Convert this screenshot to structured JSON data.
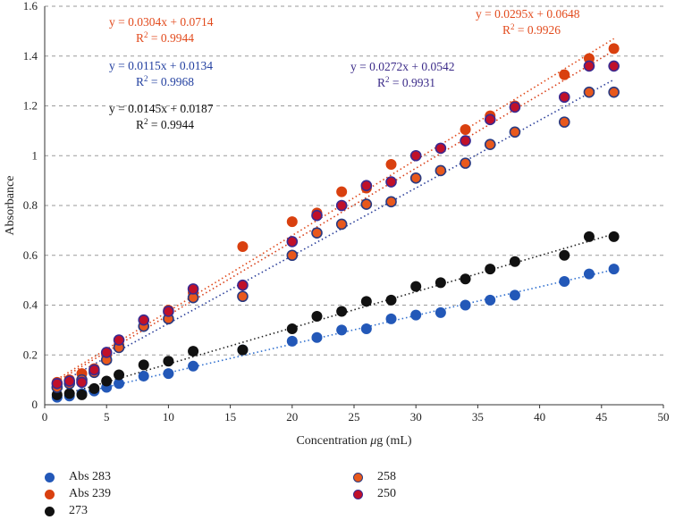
{
  "chart_data": {
    "type": "scatter",
    "xlabel_prefix": "Concentration ",
    "xlabel_mu": "μ",
    "xlabel_suffix": "g (mL)",
    "ylabel": "Absorbance",
    "xlim": [
      0,
      50
    ],
    "ylim": [
      0,
      1.6
    ],
    "xticks": [
      "0",
      "5",
      "10",
      "15",
      "20",
      "25",
      "30",
      "35",
      "40",
      "45",
      "50"
    ],
    "yticks": [
      "0",
      "0.2",
      "0.4",
      "0.6",
      "0.8",
      "1",
      "1.2",
      "1.4",
      "1.6"
    ],
    "grid": "horizontal dashed",
    "series": [
      {
        "name": "Abs 283",
        "fill": "#2358b8",
        "stroke": "#2358b8",
        "trend_color": "#2f6fcf",
        "x": [
          1,
          2,
          3,
          4,
          5,
          6,
          8,
          10,
          12,
          16,
          20,
          22,
          24,
          26,
          28,
          30,
          32,
          34,
          36,
          38,
          42,
          44,
          46
        ],
        "y": [
          0.03,
          0.035,
          0.045,
          0.055,
          0.07,
          0.085,
          0.115,
          0.125,
          0.155,
          0.22,
          0.255,
          0.27,
          0.3,
          0.305,
          0.345,
          0.36,
          0.37,
          0.4,
          0.42,
          0.44,
          0.495,
          0.525,
          0.545
        ],
        "equation": "y = 0.0115x + 0.0134",
        "r2_label": "R",
        "r2_sup": "2",
        "r2_value": " = 0.9968",
        "slope": 0.0115,
        "intercept": 0.0134
      },
      {
        "name": "Abs 239",
        "fill": "#d9400f",
        "stroke": "#d9400f",
        "trend_color": "#e04a1a",
        "x": [
          1,
          2,
          3,
          4,
          5,
          6,
          8,
          10,
          12,
          16,
          20,
          22,
          24,
          26,
          28,
          30,
          32,
          34,
          36,
          38,
          42,
          44,
          46
        ],
        "y": [
          0.09,
          0.1,
          0.125,
          0.145,
          0.2,
          0.24,
          0.34,
          0.38,
          0.45,
          0.635,
          0.735,
          0.77,
          0.855,
          0.87,
          0.965,
          1.0,
          1.03,
          1.105,
          1.16,
          1.2,
          1.325,
          1.39,
          1.43
        ],
        "equation": "y = 0.0304x + 0.0714",
        "r2_label": "R",
        "r2_sup": "2",
        "r2_value": " = 0.9944",
        "slope": 0.0304,
        "intercept": 0.0714
      },
      {
        "name": "273",
        "fill": "#111111",
        "stroke": "#111111",
        "trend_color": "#222222",
        "x": [
          1,
          2,
          3,
          4,
          5,
          6,
          8,
          10,
          12,
          16,
          20,
          22,
          24,
          26,
          28,
          30,
          32,
          34,
          36,
          38,
          42,
          44,
          46
        ],
        "y": [
          0.04,
          0.045,
          0.04,
          0.065,
          0.095,
          0.12,
          0.16,
          0.175,
          0.215,
          0.22,
          0.305,
          0.355,
          0.375,
          0.415,
          0.42,
          0.475,
          0.49,
          0.505,
          0.545,
          0.575,
          0.6,
          0.675,
          0.675
        ],
        "equation": "y = 0.0145x + 0.0187",
        "r2_label": "R",
        "r2_sup": "2",
        "r2_value": " = 0.9944",
        "slope": 0.0145,
        "intercept": 0.0187
      },
      {
        "name": "258",
        "fill": "#e8581c",
        "stroke": "#2a3a80",
        "trend_color": "#2b3f9a",
        "x": [
          1,
          2,
          3,
          4,
          5,
          6,
          8,
          10,
          12,
          16,
          20,
          22,
          24,
          26,
          28,
          30,
          32,
          34,
          36,
          38,
          42,
          44,
          46
        ],
        "y": [
          0.07,
          0.085,
          0.1,
          0.13,
          0.18,
          0.23,
          0.315,
          0.345,
          0.43,
          0.435,
          0.6,
          0.69,
          0.725,
          0.805,
          0.815,
          0.91,
          0.94,
          0.97,
          1.045,
          1.095,
          1.135,
          1.255,
          1.255
        ],
        "equation": "y = 0.0272x + 0.0542",
        "r2_label": "R",
        "r2_sup": "2",
        "r2_value": " = 0.9931",
        "slope": 0.0272,
        "intercept": 0.0542
      },
      {
        "name": "250",
        "fill": "#c0102a",
        "stroke": "#3a2a90",
        "trend_color": "#d9401a",
        "x": [
          1,
          2,
          3,
          4,
          5,
          6,
          8,
          10,
          12,
          16,
          20,
          22,
          24,
          26,
          28,
          30,
          32,
          34,
          36,
          38,
          42,
          44,
          46
        ],
        "y": [
          0.085,
          0.095,
          0.09,
          0.14,
          0.21,
          0.26,
          0.34,
          0.375,
          0.465,
          0.48,
          0.655,
          0.76,
          0.8,
          0.88,
          0.895,
          1.0,
          1.03,
          1.06,
          1.145,
          1.195,
          1.235,
          1.36,
          1.36
        ],
        "equation": "y = 0.0295x + 0.0648",
        "r2_label": "R",
        "r2_sup": "2",
        "r2_value": " = 0.9926",
        "slope": 0.0295,
        "intercept": 0.0648
      }
    ]
  },
  "equation_colors": [
    "#2340a0",
    "#e24a1c",
    "#111111",
    "#3a2a88",
    "#e24a1c"
  ]
}
